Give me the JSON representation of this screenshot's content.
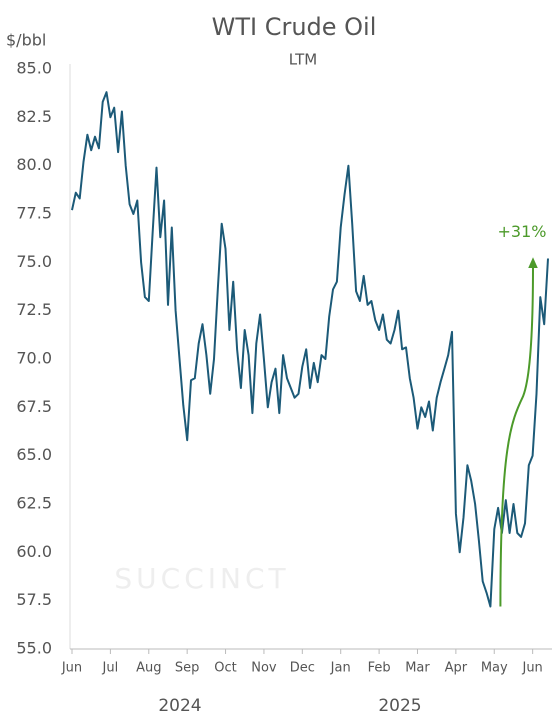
{
  "chart_data": {
    "type": "line",
    "title": "WTI Crude Oil",
    "subtitle": "LTM",
    "y_label": "$/bbl",
    "watermark": "SUCCINCT",
    "categories": [
      "Jun",
      null,
      null,
      null,
      null,
      null,
      null,
      null,
      null,
      null,
      "Jul",
      null,
      null,
      null,
      null,
      null,
      null,
      null,
      null,
      null,
      "Aug",
      null,
      null,
      null,
      null,
      null,
      null,
      null,
      null,
      null,
      "Sep",
      null,
      null,
      null,
      null,
      null,
      null,
      null,
      null,
      null,
      "Oct",
      null,
      null,
      null,
      null,
      null,
      null,
      null,
      null,
      null,
      "Nov",
      null,
      null,
      null,
      null,
      null,
      null,
      null,
      null,
      null,
      "Dec",
      null,
      null,
      null,
      null,
      null,
      null,
      null,
      null,
      null,
      "Jan",
      null,
      null,
      null,
      null,
      null,
      null,
      null,
      null,
      null,
      "Feb",
      null,
      null,
      null,
      null,
      null,
      null,
      null,
      null,
      null,
      "Mar",
      null,
      null,
      null,
      null,
      null,
      null,
      null,
      null,
      null,
      "Apr",
      null,
      null,
      null,
      null,
      null,
      null,
      null,
      null,
      null,
      "May",
      null,
      null,
      null,
      null,
      null,
      null,
      null,
      null,
      null,
      "Jun",
      null,
      null,
      null,
      null
    ],
    "values": [
      77.7,
      78.6,
      78.3,
      80.2,
      81.6,
      80.8,
      81.5,
      80.9,
      83.3,
      83.8,
      82.5,
      83.0,
      80.7,
      82.8,
      80.0,
      78.0,
      77.5,
      78.2,
      75.0,
      73.2,
      73.0,
      76.5,
      79.9,
      76.3,
      78.2,
      72.8,
      76.8,
      72.5,
      70.0,
      67.6,
      65.8,
      68.9,
      69.0,
      70.8,
      71.8,
      70.2,
      68.2,
      70.0,
      73.7,
      77.0,
      75.7,
      71.5,
      74.0,
      70.5,
      68.5,
      71.5,
      70.2,
      67.2,
      70.8,
      72.3,
      70.0,
      67.5,
      68.8,
      69.5,
      67.2,
      70.2,
      69.0,
      68.5,
      68.0,
      68.2,
      69.6,
      70.5,
      68.5,
      69.8,
      68.8,
      70.2,
      70.0,
      72.2,
      73.6,
      74.0,
      76.8,
      78.5,
      80.0,
      77.0,
      73.5,
      73.0,
      74.3,
      72.8,
      73.0,
      72.0,
      71.5,
      72.3,
      71.0,
      70.8,
      71.5,
      72.5,
      70.5,
      70.6,
      69.0,
      68.0,
      66.4,
      67.5,
      67.0,
      67.8,
      66.3,
      68.0,
      68.8,
      69.5,
      70.2,
      71.4,
      62.0,
      60.0,
      61.8,
      64.5,
      63.7,
      62.5,
      60.6,
      58.5,
      57.9,
      57.2,
      61.2,
      62.3,
      61.0,
      62.7,
      61.0,
      62.5,
      61.0,
      60.8,
      61.5,
      64.5,
      65.0,
      68.2,
      73.2,
      71.8,
      75.2
    ],
    "color": "#1c5a78",
    "ylim": [
      55,
      85
    ],
    "yticks": [
      {
        "value": 55,
        "label": "55.0"
      },
      {
        "value": 57.5,
        "label": "57.5"
      },
      {
        "value": 60,
        "label": "60.0"
      },
      {
        "value": 62.5,
        "label": "62.5"
      },
      {
        "value": 65,
        "label": "65.0"
      },
      {
        "value": 67.5,
        "label": "67.5"
      },
      {
        "value": 70,
        "label": "70.0"
      },
      {
        "value": 72.5,
        "label": "72.5"
      },
      {
        "value": 75,
        "label": "75.0"
      },
      {
        "value": 77.5,
        "label": "77.5"
      },
      {
        "value": 80,
        "label": "80.0"
      },
      {
        "value": 82.5,
        "label": "82.5"
      },
      {
        "value": 85,
        "label": "85.0"
      }
    ],
    "year_labels": [
      "2024",
      "2025"
    ],
    "annotation": {
      "text": "+31%",
      "color": "#4c9a2a"
    }
  }
}
